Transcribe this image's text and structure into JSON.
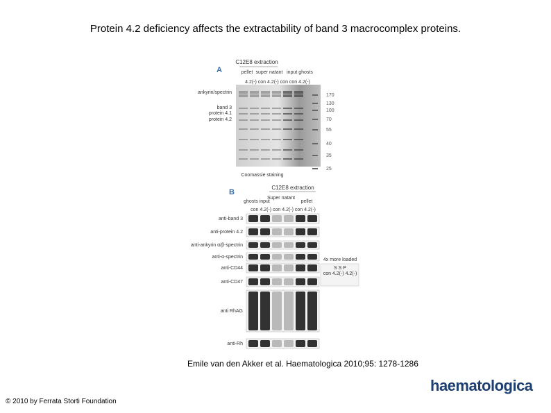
{
  "title": "Protein 4.2 deficiency affects the extractability of band 3 macrocomplex proteins.",
  "figure": {
    "panel_a": {
      "label": "A",
      "header": "C12E8 extraction",
      "groups": [
        "pellet",
        "super natant",
        "input ghosts"
      ],
      "lanes": "4.2(-) con 4.2(-) con con 4.2(-)",
      "bands": [
        "ankyrin/spectrin",
        "band 3",
        "protein 4.1",
        "protein 4.2"
      ],
      "markers": [
        "170",
        "130",
        "100",
        "70",
        "55",
        "40",
        "35",
        "25"
      ],
      "caption": "Coomassie staining"
    },
    "panel_b": {
      "label": "B",
      "header": "C12E8 extraction",
      "groups": [
        "ghosts input",
        "Super natant",
        "pellet"
      ],
      "lanes": "con 4.2(-) con 4.2(-) con 4.2(-)",
      "blots": [
        "anti-band 3",
        "anti-protein 4.2",
        "anti-ankyrin α/β-spectrin",
        "anti-α-spectrin",
        "anti-CD44",
        "anti-CD47",
        "anti RhAG",
        "anti-Rh"
      ],
      "inset": {
        "title": "4x more loaded",
        "lanes": "S S P",
        "sublanes": "con 4.2(-) 4.2(-)"
      }
    }
  },
  "citation": "Emile van den Akker et al. Haematologica 2010;95: 1278-1286",
  "copyright": "© 2010 by Ferrata Storti Foundation",
  "logo": "haematologica"
}
